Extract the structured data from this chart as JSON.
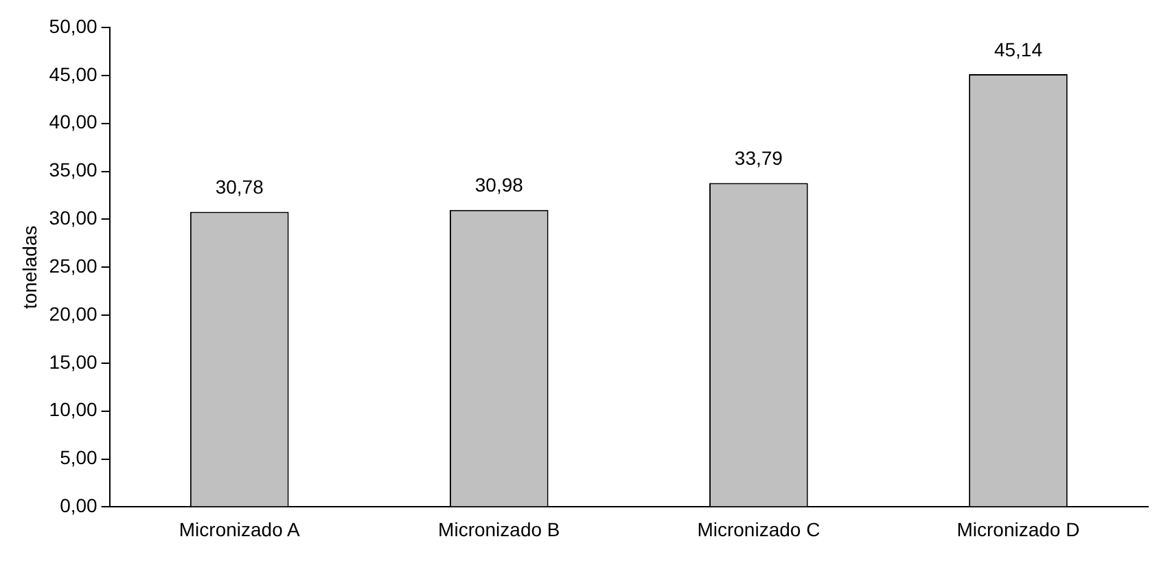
{
  "chart_data": {
    "type": "bar",
    "ylabel": "toneladas",
    "categories": [
      "Micronizado A",
      "Micronizado B",
      "Micronizado C",
      "Micronizado D"
    ],
    "values": [
      30.78,
      30.98,
      33.79,
      45.14
    ],
    "color": "#c0c0c0",
    "value_labels": [
      "30,78",
      "30,98",
      "33,79",
      "45,14"
    ],
    "ylim": [
      0,
      50
    ],
    "yticks": [
      {
        "value": 0,
        "label": "0,00"
      },
      {
        "value": 5,
        "label": "5,00"
      },
      {
        "value": 10,
        "label": "10,00"
      },
      {
        "value": 15,
        "label": "15,00"
      },
      {
        "value": 20,
        "label": "20,00"
      },
      {
        "value": 25,
        "label": "25,00"
      },
      {
        "value": 30,
        "label": "30,00"
      },
      {
        "value": 35,
        "label": "35,00"
      },
      {
        "value": 40,
        "label": "40,00"
      },
      {
        "value": 45,
        "label": "45,00"
      },
      {
        "value": 50,
        "label": "50,00"
      }
    ],
    "grid": false,
    "legend": false
  }
}
